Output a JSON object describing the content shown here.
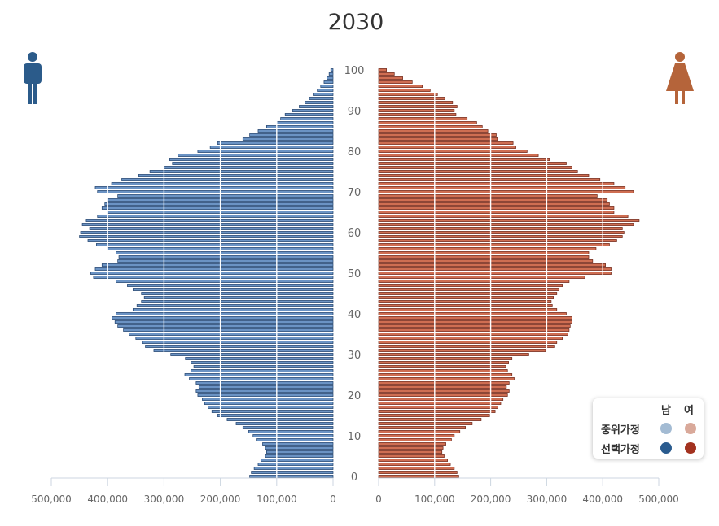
{
  "chart_data": {
    "type": "population-pyramid",
    "title": "2030",
    "y_ticks": [
      "0",
      "10",
      "20",
      "30",
      "40",
      "50",
      "60",
      "70",
      "80",
      "90",
      "100"
    ],
    "x_ticks_left": [
      "500,000",
      "400,000",
      "300,000",
      "200,000",
      "100,000",
      "0"
    ],
    "x_ticks_right": [
      "0",
      "100,000",
      "200,000",
      "300,000",
      "400,000",
      "500,000"
    ],
    "x_range": [
      0,
      500000
    ],
    "legend": {
      "male_header": "남",
      "female_header": "여",
      "rows": [
        {
          "label": "중위가정",
          "male_color": "#a3bbd3",
          "female_color": "#d9a99a"
        },
        {
          "label": "선택가정",
          "male_color": "#2a5b8e",
          "female_color": "#a3321f"
        }
      ]
    },
    "colors": {
      "male_fill": "#6b93c4",
      "male_stroke": "#1e3f6a",
      "female_fill": "#cf6e52",
      "female_stroke": "#6b2416",
      "male_icon": "#2b5b8a",
      "female_icon": "#b5643a"
    },
    "ages": [
      0,
      1,
      2,
      3,
      4,
      5,
      6,
      7,
      8,
      9,
      10,
      11,
      12,
      13,
      14,
      15,
      16,
      17,
      18,
      19,
      20,
      21,
      22,
      23,
      24,
      25,
      26,
      27,
      28,
      29,
      30,
      31,
      32,
      33,
      34,
      35,
      36,
      37,
      38,
      39,
      40,
      41,
      42,
      43,
      44,
      45,
      46,
      47,
      48,
      49,
      50,
      51,
      52,
      53,
      54,
      55,
      56,
      57,
      58,
      59,
      60,
      61,
      62,
      63,
      64,
      65,
      66,
      67,
      68,
      69,
      70,
      71,
      72,
      73,
      74,
      75,
      76,
      77,
      78,
      79,
      80,
      81,
      82,
      83,
      84,
      85,
      86,
      87,
      88,
      89,
      90,
      91,
      92,
      93,
      94,
      95,
      96,
      97,
      98,
      99,
      100
    ],
    "series": [
      {
        "name": "남",
        "values": [
          148000,
          145000,
          140000,
          133000,
          128000,
          120000,
          118000,
          120000,
          125000,
          135000,
          142000,
          150000,
          160000,
          172000,
          188000,
          205000,
          215000,
          222000,
          228000,
          232000,
          240000,
          243000,
          238000,
          243000,
          255000,
          263000,
          252000,
          247000,
          252000,
          262000,
          288000,
          318000,
          333000,
          338000,
          350000,
          362000,
          372000,
          382000,
          387000,
          392000,
          385000,
          355000,
          348000,
          340000,
          335000,
          340000,
          355000,
          365000,
          385000,
          425000,
          430000,
          422000,
          410000,
          382000,
          380000,
          385000,
          400000,
          420000,
          435000,
          450000,
          448000,
          432000,
          445000,
          438000,
          418000,
          400000,
          410000,
          405000,
          400000,
          382000,
          418000,
          422000,
          393000,
          375000,
          345000,
          325000,
          300000,
          285000,
          290000,
          275000,
          240000,
          218000,
          205000,
          160000,
          148000,
          133000,
          118000,
          100000,
          93000,
          85000,
          72000,
          60000,
          50000,
          42000,
          34000,
          28000,
          22000,
          16000,
          11000,
          7000,
          4000
        ]
      },
      {
        "name": "여",
        "values": [
          143000,
          140000,
          135000,
          128000,
          123000,
          117000,
          113000,
          115000,
          120000,
          130000,
          135000,
          145000,
          155000,
          167000,
          183000,
          198000,
          208000,
          213000,
          218000,
          222000,
          230000,
          233000,
          228000,
          233000,
          242000,
          238000,
          230000,
          227000,
          232000,
          238000,
          268000,
          298000,
          313000,
          318000,
          328000,
          338000,
          340000,
          342000,
          345000,
          345000,
          335000,
          318000,
          310000,
          308000,
          312000,
          318000,
          322000,
          328000,
          340000,
          368000,
          415000,
          415000,
          405000,
          382000,
          375000,
          375000,
          388000,
          412000,
          425000,
          435000,
          438000,
          435000,
          455000,
          465000,
          445000,
          420000,
          420000,
          412000,
          408000,
          390000,
          455000,
          440000,
          420000,
          395000,
          375000,
          355000,
          345000,
          335000,
          305000,
          285000,
          265000,
          245000,
          240000,
          212000,
          210000,
          195000,
          185000,
          175000,
          158000,
          138000,
          135000,
          140000,
          132000,
          118000,
          105000,
          92000,
          78000,
          60000,
          43000,
          28000,
          14000
        ]
      }
    ]
  }
}
